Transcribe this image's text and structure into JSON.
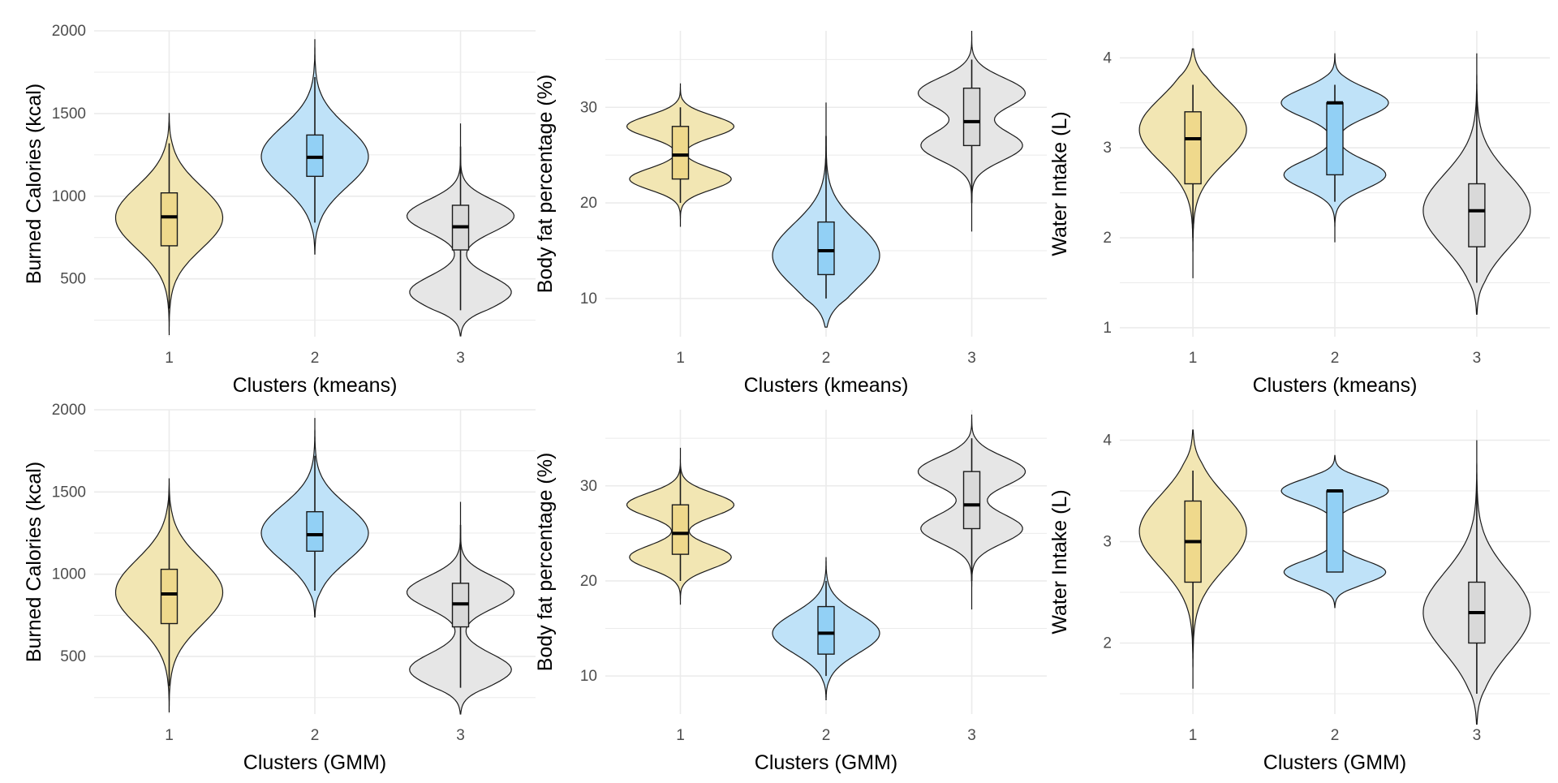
{
  "colors": {
    "cluster_fills": [
      "#F2E6B3",
      "#BFE2F8",
      "#E6E6E6"
    ],
    "box_fills": [
      "#EFD98C",
      "#92D0F5",
      "#D9D9D9"
    ],
    "outline": "#1a1a1a",
    "grid": "#EBEBEB",
    "tick_text": "#4D4D4D",
    "label_text": "#000000"
  },
  "chart_data": [
    {
      "type": "violin",
      "grid": true,
      "legend": "none",
      "xlabel": "Clusters (kmeans)",
      "ylabel": "Burned Calories (kcal)",
      "categories": [
        "1",
        "2",
        "3"
      ],
      "ylim": [
        150,
        2000
      ],
      "yticks": [
        500,
        1000,
        1500,
        2000
      ],
      "series": [
        {
          "min": 320,
          "max": 1320,
          "q1": 700,
          "median": 875,
          "q3": 1020,
          "vmin": 160,
          "vmax": 1500,
          "mode": "single",
          "peak": 870
        },
        {
          "min": 840,
          "max": 1720,
          "q1": 1120,
          "median": 1235,
          "q3": 1370,
          "vmin": 650,
          "vmax": 1950,
          "mode": "single",
          "peak": 1240
        },
        {
          "min": 310,
          "max": 1300,
          "q1": 675,
          "median": 815,
          "q3": 945,
          "vmin": 155,
          "vmax": 1440,
          "mode": "bimodal",
          "peaks": [
            880,
            420
          ]
        }
      ]
    },
    {
      "type": "violin",
      "grid": true,
      "legend": "none",
      "xlabel": "Clusters (kmeans)",
      "ylabel": "Body fat percentage (%)",
      "categories": [
        "1",
        "2",
        "3"
      ],
      "ylim": [
        6,
        38
      ],
      "yticks": [
        10,
        20,
        30
      ],
      "series": [
        {
          "min": 20,
          "max": 30,
          "q1": 22.5,
          "median": 25,
          "q3": 28,
          "vmin": 17.5,
          "vmax": 32.5,
          "mode": "bimodal",
          "peaks": [
            28,
            22.5
          ]
        },
        {
          "min": 10,
          "max": 27,
          "q1": 12.5,
          "median": 15,
          "q3": 18,
          "vmin": 7,
          "vmax": 30.5,
          "mode": "single",
          "peak": 14.5
        },
        {
          "min": 20,
          "max": 35,
          "q1": 26,
          "median": 28.5,
          "q3": 32,
          "vmin": 17,
          "vmax": 38,
          "mode": "bimodal",
          "peaks": [
            31.5,
            26
          ]
        }
      ]
    },
    {
      "type": "violin",
      "grid": true,
      "legend": "none",
      "xlabel": "Clusters (kmeans)",
      "ylabel": "Water Intake (L)",
      "categories": [
        "1",
        "2",
        "3"
      ],
      "ylim": [
        0.9,
        4.3
      ],
      "yticks": [
        1,
        2,
        3,
        4
      ],
      "series": [
        {
          "min": 2.0,
          "max": 3.7,
          "q1": 2.6,
          "median": 3.1,
          "q3": 3.4,
          "vmin": 1.55,
          "vmax": 4.1,
          "mode": "single",
          "peak": 3.2
        },
        {
          "min": 2.4,
          "max": 3.7,
          "q1": 2.7,
          "median": 3.5,
          "q3": 3.5,
          "vmin": 1.95,
          "vmax": 4.05,
          "mode": "bimodal",
          "peaks": [
            3.5,
            2.7
          ]
        },
        {
          "min": 1.5,
          "max": 3.6,
          "q1": 1.9,
          "median": 2.3,
          "q3": 2.6,
          "vmin": 1.15,
          "vmax": 4.05,
          "mode": "single",
          "peak": 2.3
        }
      ]
    },
    {
      "type": "violin",
      "grid": true,
      "legend": "none",
      "xlabel": "Clusters (GMM)",
      "ylabel": "Burned Calories (kcal)",
      "categories": [
        "1",
        "2",
        "3"
      ],
      "ylim": [
        150,
        2000
      ],
      "yticks": [
        500,
        1000,
        1500,
        2000
      ],
      "series": [
        {
          "min": 320,
          "max": 1480,
          "q1": 700,
          "median": 880,
          "q3": 1030,
          "vmin": 160,
          "vmax": 1580,
          "mode": "single",
          "peak": 890
        },
        {
          "min": 900,
          "max": 1720,
          "q1": 1140,
          "median": 1240,
          "q3": 1380,
          "vmin": 740,
          "vmax": 1950,
          "mode": "single",
          "peak": 1250
        },
        {
          "min": 310,
          "max": 1300,
          "q1": 680,
          "median": 820,
          "q3": 945,
          "vmin": 150,
          "vmax": 1440,
          "mode": "bimodal",
          "peaks": [
            890,
            420
          ]
        }
      ]
    },
    {
      "type": "violin",
      "grid": true,
      "legend": "none",
      "xlabel": "Clusters (GMM)",
      "ylabel": "Body fat percentage (%)",
      "categories": [
        "1",
        "2",
        "3"
      ],
      "ylim": [
        6,
        38
      ],
      "yticks": [
        10,
        20,
        30
      ],
      "series": [
        {
          "min": 20,
          "max": 32,
          "q1": 22.8,
          "median": 25,
          "q3": 28,
          "vmin": 17.5,
          "vmax": 34,
          "mode": "bimodal",
          "peaks": [
            28,
            22.5
          ]
        },
        {
          "min": 10,
          "max": 20,
          "q1": 12.3,
          "median": 14.5,
          "q3": 17.3,
          "vmin": 7.5,
          "vmax": 22.5,
          "mode": "single",
          "peak": 14.5
        },
        {
          "min": 20,
          "max": 35,
          "q1": 25.5,
          "median": 28,
          "q3": 31.5,
          "vmin": 17,
          "vmax": 37.5,
          "mode": "bimodal",
          "peaks": [
            31.5,
            25.5
          ]
        }
      ]
    },
    {
      "type": "violin",
      "grid": true,
      "legend": "none",
      "xlabel": "Clusters (GMM)",
      "ylabel": "Water Intake (L)",
      "categories": [
        "1",
        "2",
        "3"
      ],
      "ylim": [
        1.3,
        4.3
      ],
      "yticks": [
        2,
        3,
        4
      ],
      "series": [
        {
          "min": 2.0,
          "max": 3.7,
          "q1": 2.6,
          "median": 3.0,
          "q3": 3.4,
          "vmin": 1.55,
          "vmax": 4.1,
          "mode": "single",
          "peak": 3.1
        },
        {
          "min": 2.7,
          "max": 3.5,
          "q1": 2.7,
          "median": 3.5,
          "q3": 3.5,
          "vmin": 2.35,
          "vmax": 3.85,
          "mode": "bimodal",
          "peaks": [
            3.5,
            2.7
          ]
        },
        {
          "min": 1.5,
          "max": 3.5,
          "q1": 2.0,
          "median": 2.3,
          "q3": 2.6,
          "vmin": 1.2,
          "vmax": 4.0,
          "mode": "single",
          "peak": 2.3
        }
      ]
    }
  ]
}
